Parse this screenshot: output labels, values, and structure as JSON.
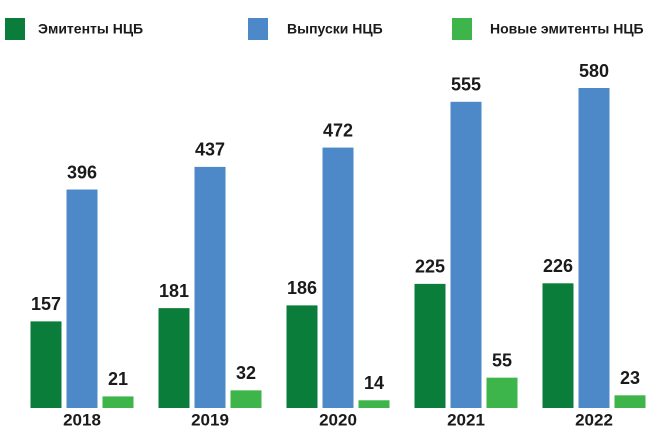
{
  "chart_data": {
    "type": "bar",
    "categories": [
      "2018",
      "2019",
      "2020",
      "2021",
      "2022"
    ],
    "series": [
      {
        "name": "Эмитенты НЦБ",
        "color": "#0b7d3a",
        "values": [
          157,
          181,
          186,
          225,
          226
        ]
      },
      {
        "name": "Выпуски НЦБ",
        "color": "#4d88c9",
        "values": [
          396,
          437,
          472,
          555,
          580
        ]
      },
      {
        "name": "Новые эмитенты НЦБ",
        "color": "#3db54a",
        "values": [
          21,
          32,
          14,
          55,
          23
        ]
      }
    ],
    "legend": "top"
  }
}
